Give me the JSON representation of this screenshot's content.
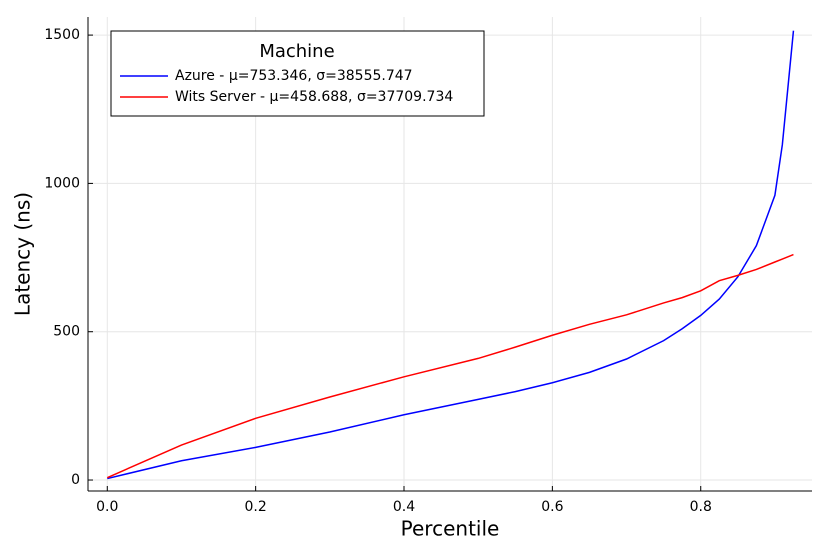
{
  "chart_data": {
    "type": "line",
    "xlabel": "Percentile",
    "ylabel": "Latency (ns)",
    "legend_title": "Machine",
    "legend": "top-left",
    "grid": true,
    "x": [
      0,
      0.1,
      0.2,
      0.3,
      0.4,
      0.5,
      0.55,
      0.6,
      0.65,
      0.7,
      0.75,
      0.775,
      0.8,
      0.825,
      0.85,
      0.875,
      0.9,
      0.91,
      0.925
    ],
    "series": [
      {
        "name": "Azure - μ=753.346, σ=38555.747",
        "color": "#0000ff",
        "values": [
          5,
          65,
          110,
          162,
          220,
          272,
          298,
          328,
          363,
          408,
          470,
          510,
          555,
          610,
          685,
          790,
          960,
          1130,
          1515
        ]
      },
      {
        "name": "Wits Server - μ=458.688, σ=37709.734",
        "color": "#ff0000",
        "values": [
          8,
          118,
          208,
          280,
          348,
          410,
          448,
          488,
          525,
          557,
          597,
          615,
          638,
          672,
          690,
          710,
          735,
          745,
          760
        ]
      }
    ],
    "xlim": [
      -0.026,
      0.95
    ],
    "ylim": [
      -37,
      1561
    ],
    "xticks": [
      {
        "value": 0,
        "label": "0.0"
      },
      0.2,
      0.4,
      0.6,
      0.8
    ],
    "yticks": [
      0,
      500,
      1000,
      1500
    ]
  }
}
